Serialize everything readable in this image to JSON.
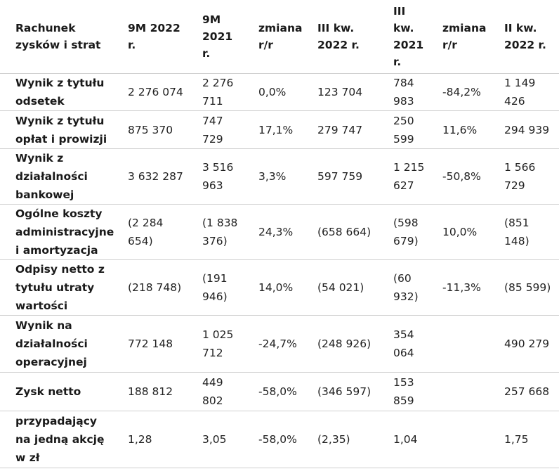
{
  "table": {
    "headers": [
      "Rachunek zysków i strat",
      "9M 2022 r.",
      "9M 2021 r.",
      "zmiana r/r",
      "III kw. 2022 r.",
      "III kw. 2021 r.",
      "zmiana r/r",
      "II kw. 2022 r."
    ],
    "rows": [
      {
        "label": "Wynik z tytułu odsetek",
        "cells": [
          "2 276 074",
          "2 276 711",
          "0,0%",
          "123 704",
          "784 983",
          "-84,2%",
          "1 149 426"
        ]
      },
      {
        "label": "Wynik z tytułu opłat i prowizji",
        "cells": [
          "875 370",
          "747 729",
          "17,1%",
          "279 747",
          "250 599",
          "11,6%",
          "294 939"
        ]
      },
      {
        "label": "Wynik z działalności bankowej",
        "cells": [
          "3 632 287",
          "3 516 963",
          "3,3%",
          "597 759",
          "1 215 627",
          "-50,8%",
          "1 566 729"
        ]
      },
      {
        "label": "Ogólne koszty administracyjne i amortyzacja",
        "cells": [
          "(2 284 654)",
          "(1 838 376)",
          "24,3%",
          "(658 664)",
          "(598 679)",
          "10,0%",
          "(851 148)"
        ]
      },
      {
        "label": "Odpisy netto z tytułu utraty wartości",
        "cells": [
          "(218 748)",
          "(191 946)",
          "14,0%",
          "(54 021)",
          "(60 932)",
          "-11,3%",
          "(85 599)"
        ]
      },
      {
        "label": "Wynik na działalności operacyjnej",
        "cells": [
          "772 148",
          "1 025 712",
          "-24,7%",
          "(248 926)",
          "354 064",
          "",
          "490 279"
        ]
      },
      {
        "label": "Zysk netto",
        "cells": [
          "188 812",
          "449 802",
          "-58,0%",
          "(346 597)",
          "153 859",
          "",
          "257 668"
        ]
      },
      {
        "label": "przypadający na jedną akcję w zł",
        "cells": [
          "1,28",
          "3,05",
          "-58,0%",
          "(2,35)",
          "1,04",
          "",
          "1,75"
        ]
      }
    ]
  }
}
